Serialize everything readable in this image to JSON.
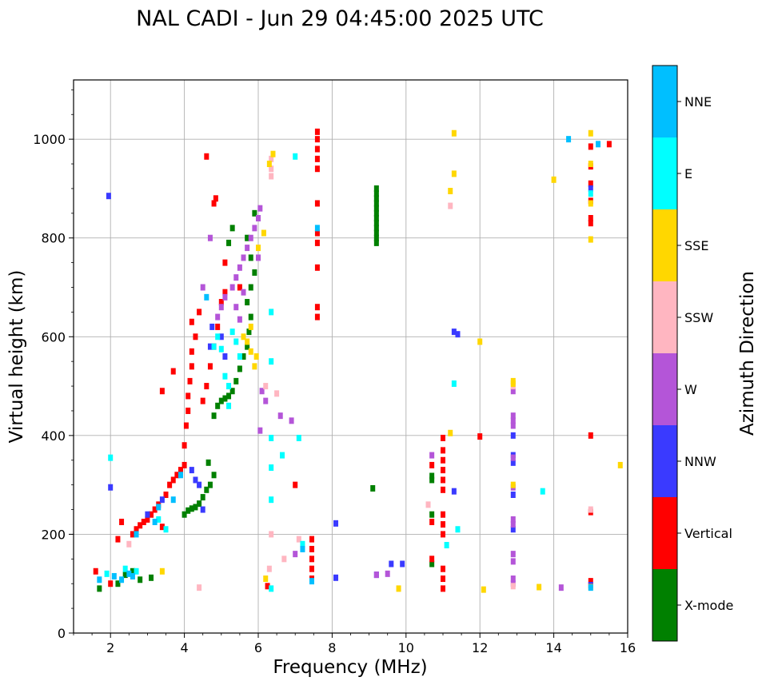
{
  "chart_data": {
    "type": "scatter",
    "title": "NAL CADI - Jun 29 04:45:00 2025 UTC",
    "xlabel": "Frequency (MHz)",
    "ylabel": "Virtual height (km)",
    "xlim": [
      1,
      16
    ],
    "ylim": [
      0,
      1120
    ],
    "xticks": [
      "2",
      "4",
      "6",
      "8",
      "10",
      "12",
      "14",
      "16"
    ],
    "xtick_values": [
      2,
      4,
      6,
      8,
      10,
      12,
      14,
      16
    ],
    "yticks": [
      "0",
      "200",
      "400",
      "600",
      "800",
      "1000"
    ],
    "ytick_values": [
      0,
      200,
      400,
      600,
      800,
      1000
    ],
    "grid": true,
    "colorbar": {
      "label": "Azimuth Direction",
      "categories": [
        "X-mode",
        "Vertical",
        "NNW",
        "W",
        "SSW",
        "SSE",
        "E",
        "NNE"
      ],
      "colors": [
        "#008000",
        "#ff0000",
        "#3a3aff",
        "#b455d8",
        "#ffb6c1",
        "#ffd700",
        "#00ffff",
        "#00bfff"
      ]
    },
    "series": [
      {
        "name": "X-mode",
        "points": [
          [
            1.7,
            90
          ],
          [
            2.2,
            100
          ],
          [
            2.4,
            118
          ],
          [
            2.6,
            125
          ],
          [
            2.8,
            108
          ],
          [
            3.1,
            112
          ],
          [
            4.0,
            240
          ],
          [
            4.1,
            248
          ],
          [
            4.2,
            252
          ],
          [
            4.3,
            255
          ],
          [
            4.4,
            262
          ],
          [
            4.5,
            275
          ],
          [
            4.6,
            290
          ],
          [
            4.7,
            300
          ],
          [
            4.8,
            320
          ],
          [
            4.65,
            345
          ],
          [
            4.8,
            440
          ],
          [
            4.9,
            460
          ],
          [
            5.0,
            470
          ],
          [
            5.1,
            475
          ],
          [
            5.2,
            480
          ],
          [
            5.3,
            490
          ],
          [
            5.4,
            510
          ],
          [
            5.5,
            535
          ],
          [
            5.6,
            560
          ],
          [
            5.7,
            580
          ],
          [
            5.75,
            610
          ],
          [
            5.8,
            640
          ],
          [
            5.7,
            670
          ],
          [
            5.8,
            700
          ],
          [
            5.9,
            730
          ],
          [
            5.8,
            760
          ],
          [
            5.2,
            790
          ],
          [
            5.7,
            800
          ],
          [
            5.3,
            820
          ],
          [
            5.9,
            850
          ],
          [
            9.2,
            790
          ],
          [
            9.2,
            800
          ],
          [
            9.2,
            810
          ],
          [
            9.2,
            820
          ],
          [
            9.2,
            830
          ],
          [
            9.2,
            840
          ],
          [
            9.2,
            850
          ],
          [
            9.2,
            860
          ],
          [
            9.2,
            870
          ],
          [
            9.2,
            880
          ],
          [
            9.2,
            890
          ],
          [
            9.2,
            900
          ],
          [
            9.1,
            293
          ],
          [
            10.7,
            140
          ],
          [
            10.7,
            240
          ],
          [
            10.7,
            310
          ],
          [
            10.7,
            318
          ]
        ]
      },
      {
        "name": "Vertical",
        "points": [
          [
            1.6,
            125
          ],
          [
            2.0,
            100
          ],
          [
            2.2,
            190
          ],
          [
            2.3,
            225
          ],
          [
            2.6,
            200
          ],
          [
            2.7,
            210
          ],
          [
            2.8,
            218
          ],
          [
            2.9,
            225
          ],
          [
            3.0,
            230
          ],
          [
            3.1,
            240
          ],
          [
            3.2,
            250
          ],
          [
            3.3,
            260
          ],
          [
            3.4,
            215
          ],
          [
            3.5,
            280
          ],
          [
            3.6,
            300
          ],
          [
            3.7,
            310
          ],
          [
            3.8,
            320
          ],
          [
            3.9,
            330
          ],
          [
            4.0,
            340
          ],
          [
            4.0,
            380
          ],
          [
            4.05,
            420
          ],
          [
            4.1,
            450
          ],
          [
            4.1,
            480
          ],
          [
            4.15,
            510
          ],
          [
            4.2,
            540
          ],
          [
            4.2,
            570
          ],
          [
            4.3,
            600
          ],
          [
            4.2,
            630
          ],
          [
            4.4,
            650
          ],
          [
            4.5,
            470
          ],
          [
            4.6,
            500
          ],
          [
            4.7,
            540
          ],
          [
            4.8,
            580
          ],
          [
            4.9,
            620
          ],
          [
            5.0,
            670
          ],
          [
            5.1,
            690
          ],
          [
            4.6,
            965
          ],
          [
            4.8,
            870
          ],
          [
            4.85,
            880
          ],
          [
            3.4,
            490
          ],
          [
            3.7,
            530
          ],
          [
            5.1,
            750
          ],
          [
            5.5,
            700
          ],
          [
            6.25,
            95
          ],
          [
            7.0,
            300
          ],
          [
            7.6,
            940
          ],
          [
            7.6,
            960
          ],
          [
            7.6,
            980
          ],
          [
            7.6,
            1000
          ],
          [
            7.6,
            1015
          ],
          [
            7.6,
            790
          ],
          [
            7.6,
            810
          ],
          [
            7.6,
            740
          ],
          [
            7.6,
            640
          ],
          [
            7.6,
            660
          ],
          [
            7.6,
            870
          ],
          [
            7.45,
            110
          ],
          [
            7.45,
            130
          ],
          [
            7.45,
            150
          ],
          [
            7.45,
            170
          ],
          [
            7.45,
            190
          ],
          [
            11.0,
            90
          ],
          [
            11.0,
            110
          ],
          [
            11.0,
            130
          ],
          [
            11.0,
            200
          ],
          [
            11.0,
            220
          ],
          [
            11.0,
            240
          ],
          [
            11.0,
            290
          ],
          [
            11.0,
            310
          ],
          [
            11.0,
            330
          ],
          [
            11.0,
            350
          ],
          [
            11.0,
            370
          ],
          [
            11.0,
            395
          ],
          [
            10.7,
            150
          ],
          [
            10.7,
            225
          ],
          [
            10.7,
            340
          ],
          [
            15.0,
            400
          ],
          [
            15.0,
            245
          ],
          [
            15.0,
            105
          ],
          [
            15.0,
            830
          ],
          [
            15.0,
            840
          ],
          [
            15.0,
            875
          ],
          [
            15.0,
            910
          ],
          [
            15.0,
            945
          ],
          [
            15.0,
            985
          ],
          [
            15.5,
            990
          ],
          [
            12.0,
            398
          ]
        ]
      },
      {
        "name": "NNW",
        "points": [
          [
            1.95,
            885
          ],
          [
            2.0,
            295
          ],
          [
            3.0,
            240
          ],
          [
            3.4,
            270
          ],
          [
            4.2,
            330
          ],
          [
            4.3,
            310
          ],
          [
            4.4,
            300
          ],
          [
            4.5,
            250
          ],
          [
            4.7,
            580
          ],
          [
            4.75,
            620
          ],
          [
            5.0,
            600
          ],
          [
            5.1,
            560
          ],
          [
            9.2,
            118
          ],
          [
            9.6,
            140
          ],
          [
            9.9,
            140
          ],
          [
            8.1,
            222
          ],
          [
            8.1,
            112
          ],
          [
            11.3,
            610
          ],
          [
            11.4,
            605
          ],
          [
            12.9,
            210
          ],
          [
            12.9,
            280
          ],
          [
            12.9,
            345
          ],
          [
            12.9,
            360
          ],
          [
            12.9,
            400
          ],
          [
            11.3,
            287
          ],
          [
            15.0,
            900
          ],
          [
            15.0,
            97
          ]
        ]
      },
      {
        "name": "W",
        "points": [
          [
            4.9,
            640
          ],
          [
            5.0,
            660
          ],
          [
            5.1,
            680
          ],
          [
            5.3,
            700
          ],
          [
            5.4,
            720
          ],
          [
            5.5,
            740
          ],
          [
            5.6,
            760
          ],
          [
            5.7,
            780
          ],
          [
            5.8,
            800
          ],
          [
            5.9,
            820
          ],
          [
            6.0,
            840
          ],
          [
            6.05,
            860
          ],
          [
            5.4,
            660
          ],
          [
            5.6,
            690
          ],
          [
            6.0,
            760
          ],
          [
            5.5,
            635
          ],
          [
            6.1,
            490
          ],
          [
            6.2,
            470
          ],
          [
            6.6,
            440
          ],
          [
            6.9,
            430
          ],
          [
            6.05,
            410
          ],
          [
            7.0,
            160
          ],
          [
            9.2,
            118
          ],
          [
            9.5,
            120
          ],
          [
            10.7,
            360
          ],
          [
            12.9,
            100
          ],
          [
            12.9,
            110
          ],
          [
            12.9,
            145
          ],
          [
            12.9,
            160
          ],
          [
            12.9,
            220
          ],
          [
            12.9,
            230
          ],
          [
            12.9,
            295
          ],
          [
            12.9,
            355
          ],
          [
            12.9,
            420
          ],
          [
            12.9,
            430
          ],
          [
            12.9,
            440
          ],
          [
            12.9,
            490
          ],
          [
            14.2,
            92
          ],
          [
            4.7,
            800
          ],
          [
            4.5,
            700
          ]
        ]
      },
      {
        "name": "SSW",
        "points": [
          [
            2.5,
            180
          ],
          [
            6.2,
            500
          ],
          [
            6.5,
            485
          ],
          [
            6.35,
            940
          ],
          [
            6.35,
            960
          ],
          [
            6.35,
            925
          ],
          [
            6.35,
            200
          ],
          [
            6.7,
            150
          ],
          [
            7.1,
            190
          ],
          [
            4.4,
            92
          ],
          [
            10.6,
            260
          ],
          [
            11.2,
            865
          ],
          [
            12.9,
            500
          ],
          [
            12.9,
            95
          ],
          [
            15.0,
            250
          ],
          [
            6.3,
            130
          ]
        ]
      },
      {
        "name": "SSE",
        "points": [
          [
            5.6,
            600
          ],
          [
            5.7,
            590
          ],
          [
            5.8,
            570
          ],
          [
            5.9,
            540
          ],
          [
            5.95,
            560
          ],
          [
            5.8,
            620
          ],
          [
            6.0,
            780
          ],
          [
            6.15,
            810
          ],
          [
            6.4,
            970
          ],
          [
            6.3,
            950
          ],
          [
            6.2,
            110
          ],
          [
            9.8,
            90
          ],
          [
            11.2,
            405
          ],
          [
            11.3,
            1012
          ],
          [
            11.3,
            930
          ],
          [
            11.2,
            895
          ],
          [
            12.1,
            88
          ],
          [
            12.9,
            300
          ],
          [
            12.9,
            505
          ],
          [
            12.9,
            510
          ],
          [
            13.6,
            93
          ],
          [
            14.0,
            918
          ],
          [
            15.0,
            1012
          ],
          [
            15.0,
            950
          ],
          [
            15.0,
            870
          ],
          [
            15.0,
            797
          ],
          [
            15.0,
            93
          ],
          [
            15.8,
            340
          ],
          [
            12.0,
            590
          ],
          [
            3.4,
            125
          ]
        ]
      },
      {
        "name": "E",
        "points": [
          [
            1.9,
            120
          ],
          [
            2.0,
            355
          ],
          [
            2.4,
            130
          ],
          [
            2.7,
            125
          ],
          [
            3.3,
            230
          ],
          [
            3.5,
            210
          ],
          [
            4.8,
            580
          ],
          [
            4.9,
            600
          ],
          [
            5.0,
            575
          ],
          [
            5.1,
            520
          ],
          [
            5.2,
            500
          ],
          [
            5.3,
            610
          ],
          [
            5.4,
            590
          ],
          [
            5.5,
            560
          ],
          [
            5.2,
            460
          ],
          [
            6.35,
            650
          ],
          [
            6.35,
            550
          ],
          [
            6.35,
            335
          ],
          [
            6.35,
            270
          ],
          [
            6.35,
            395
          ],
          [
            6.65,
            360
          ],
          [
            7.1,
            395
          ],
          [
            7.2,
            180
          ],
          [
            6.35,
            90
          ],
          [
            7.0,
            965
          ],
          [
            11.3,
            505
          ],
          [
            11.4,
            210
          ],
          [
            13.7,
            287
          ],
          [
            15.0,
            890
          ],
          [
            11.1,
            178
          ]
        ]
      },
      {
        "name": "NNE",
        "points": [
          [
            1.7,
            108
          ],
          [
            2.1,
            115
          ],
          [
            2.3,
            108
          ],
          [
            2.5,
            120
          ],
          [
            2.6,
            115
          ],
          [
            2.7,
            200
          ],
          [
            3.2,
            225
          ],
          [
            3.3,
            255
          ],
          [
            3.7,
            270
          ],
          [
            3.9,
            320
          ],
          [
            4.6,
            680
          ],
          [
            7.6,
            820
          ],
          [
            7.45,
            105
          ],
          [
            7.2,
            170
          ],
          [
            14.4,
            1000
          ],
          [
            15.0,
            92
          ],
          [
            15.2,
            990
          ]
        ]
      }
    ]
  }
}
